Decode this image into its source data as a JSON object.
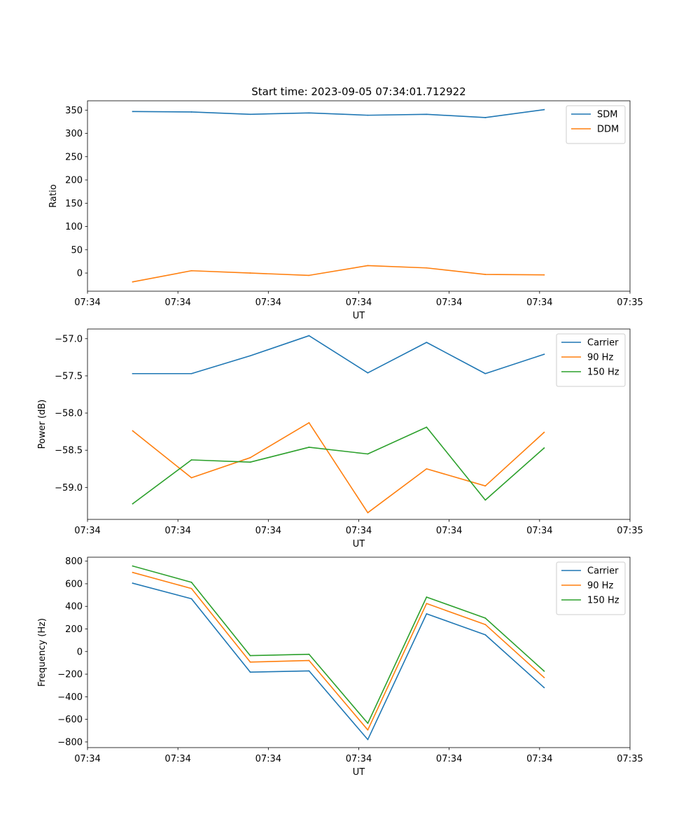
{
  "figure_title": "Start time: 2023-09-05 07:34:01.712922",
  "colors": {
    "c0": "#1f77b4",
    "c1": "#ff7f0e",
    "c2": "#2ca02c"
  },
  "chart_data": [
    {
      "type": "line",
      "title": "Start time: 2023-09-05 07:34:01.712922",
      "xlabel": "UT",
      "ylabel": "Ratio",
      "xlim": [
        0,
        12
      ],
      "ylim": [
        -39,
        370
      ],
      "yticks": [
        0,
        50,
        100,
        150,
        200,
        250,
        300,
        350
      ],
      "ytick_labels": [
        "0",
        "50",
        "100",
        "150",
        "200",
        "250",
        "300",
        "350"
      ],
      "xticks": [
        0,
        2,
        4,
        6,
        8,
        10,
        12
      ],
      "xtick_labels": [
        "07:34",
        "07:34",
        "07:34",
        "07:34",
        "07:34",
        "07:34",
        "07:35"
      ],
      "legend_position": "top-right",
      "x": [
        1,
        2.3,
        3.6,
        4.9,
        6.2,
        7.5,
        8.8,
        10.1
      ],
      "series": [
        {
          "name": "SDM",
          "color": "#1f77b4",
          "values": [
            347,
            346,
            341,
            344,
            339,
            341,
            334,
            351
          ]
        },
        {
          "name": "DDM",
          "color": "#ff7f0e",
          "values": [
            -19,
            5,
            0,
            -5,
            16,
            11,
            -3,
            -4
          ]
        }
      ]
    },
    {
      "type": "line",
      "title": "",
      "xlabel": "UT",
      "ylabel": "Power (dB)",
      "xlim": [
        0,
        12
      ],
      "ylim": [
        -59.43,
        -56.87
      ],
      "yticks": [
        -59.0,
        -58.5,
        -58.0,
        -57.5,
        -57.0
      ],
      "ytick_labels": [
        "−59.0",
        "−58.5",
        "−58.0",
        "−57.5",
        "−57.0"
      ],
      "xticks": [
        0,
        2,
        4,
        6,
        8,
        10,
        12
      ],
      "xtick_labels": [
        "07:34",
        "07:34",
        "07:34",
        "07:34",
        "07:34",
        "07:34",
        "07:35"
      ],
      "legend_position": "top-right",
      "x": [
        1,
        2.3,
        3.6,
        4.9,
        6.2,
        7.5,
        8.8,
        10.1
      ],
      "series": [
        {
          "name": "Carrier",
          "color": "#1f77b4",
          "values": [
            -57.47,
            -57.47,
            -57.23,
            -56.96,
            -57.46,
            -57.05,
            -57.47,
            -57.21
          ]
        },
        {
          "name": "90 Hz",
          "color": "#ff7f0e",
          "values": [
            -58.24,
            -58.87,
            -58.6,
            -58.13,
            -59.34,
            -58.75,
            -58.98,
            -58.26
          ]
        },
        {
          "name": "150 Hz",
          "color": "#2ca02c",
          "values": [
            -59.22,
            -58.63,
            -58.66,
            -58.46,
            -58.55,
            -58.19,
            -59.17,
            -58.47
          ]
        }
      ]
    },
    {
      "type": "line",
      "title": "",
      "xlabel": "UT",
      "ylabel": "Frequency (Hz)",
      "xlim": [
        0,
        12
      ],
      "ylim": [
        -850,
        835
      ],
      "yticks": [
        -800,
        -600,
        -400,
        -200,
        0,
        200,
        400,
        600,
        800
      ],
      "ytick_labels": [
        "−800",
        "−600",
        "−400",
        "−200",
        "0",
        "200",
        "400",
        "600",
        "800"
      ],
      "xticks": [
        0,
        2,
        4,
        6,
        8,
        10,
        12
      ],
      "xtick_labels": [
        "07:34",
        "07:34",
        "07:34",
        "07:34",
        "07:34",
        "07:34",
        "07:35"
      ],
      "legend_position": "top-right",
      "x": [
        1,
        2.3,
        3.6,
        4.9,
        6.2,
        7.5,
        8.8,
        10.1
      ],
      "series": [
        {
          "name": "Carrier",
          "color": "#1f77b4",
          "values": [
            605,
            467,
            -182,
            -171,
            -779,
            334,
            148,
            -319
          ]
        },
        {
          "name": "90 Hz",
          "color": "#ff7f0e",
          "values": [
            700,
            558,
            -93,
            -79,
            -694,
            425,
            239,
            -230
          ]
        },
        {
          "name": "150 Hz",
          "color": "#2ca02c",
          "values": [
            757,
            613,
            -36,
            -24,
            -635,
            482,
            296,
            -173
          ]
        }
      ]
    }
  ]
}
